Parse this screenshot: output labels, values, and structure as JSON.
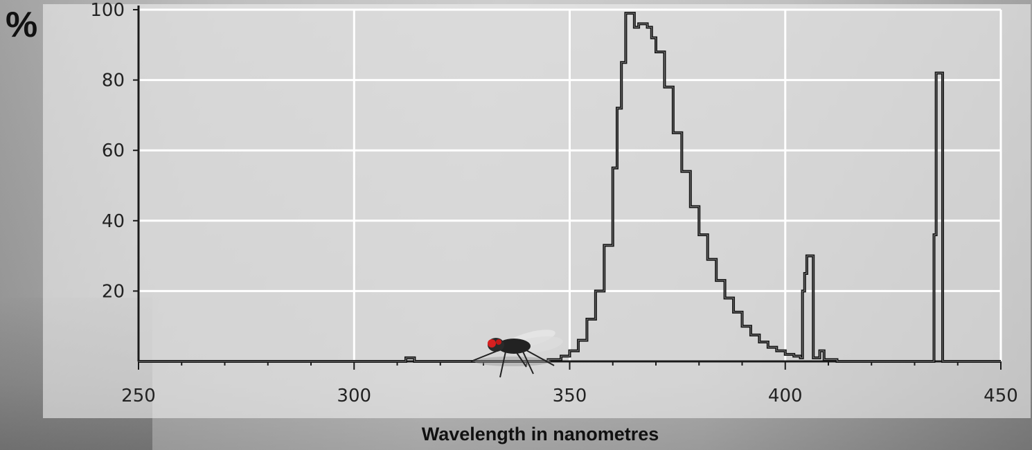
{
  "y_unit_label": "%",
  "x_axis_title": "Wavelength in nanometres",
  "colors": {
    "curve": "#111111",
    "grid": "#ffffff",
    "axis": "#1a1a1a",
    "plot_background": "#d6d6d6"
  },
  "icons": [
    "fly-icon"
  ],
  "chart_data": {
    "type": "line",
    "title": "",
    "xlabel": "Wavelength in nanometres",
    "ylabel": "%",
    "xlim": [
      250,
      450
    ],
    "ylim": [
      0,
      100
    ],
    "x_ticks": [
      250,
      300,
      350,
      400,
      450
    ],
    "y_ticks": [
      20,
      40,
      60,
      80,
      100
    ],
    "grid": true,
    "series": [
      {
        "values_xy": [
          [
            250,
            0
          ],
          [
            310,
            0
          ],
          [
            312,
            1
          ],
          [
            314,
            0
          ],
          [
            340,
            0
          ],
          [
            345,
            0.5
          ],
          [
            348,
            1.5
          ],
          [
            350,
            3
          ],
          [
            352,
            6
          ],
          [
            354,
            12
          ],
          [
            356,
            20
          ],
          [
            358,
            33
          ],
          [
            360,
            55
          ],
          [
            361,
            72
          ],
          [
            362,
            85
          ],
          [
            363,
            99
          ],
          [
            364,
            99
          ],
          [
            365,
            95
          ],
          [
            366,
            96
          ],
          [
            367,
            96
          ],
          [
            368,
            95
          ],
          [
            369,
            92
          ],
          [
            370,
            88
          ],
          [
            372,
            78
          ],
          [
            374,
            65
          ],
          [
            376,
            54
          ],
          [
            378,
            44
          ],
          [
            380,
            36
          ],
          [
            382,
            29
          ],
          [
            384,
            23
          ],
          [
            386,
            18
          ],
          [
            388,
            14
          ],
          [
            390,
            10
          ],
          [
            392,
            7.5
          ],
          [
            394,
            5.5
          ],
          [
            396,
            4
          ],
          [
            398,
            3
          ],
          [
            400,
            2
          ],
          [
            402,
            1.5
          ],
          [
            403.5,
            1
          ],
          [
            404,
            20
          ],
          [
            404.5,
            25
          ],
          [
            405,
            30
          ],
          [
            406,
            30
          ],
          [
            406.5,
            1
          ],
          [
            408,
            3
          ],
          [
            409,
            0.5
          ],
          [
            412,
            0
          ],
          [
            434,
            0
          ],
          [
            434.5,
            36
          ],
          [
            435,
            82
          ],
          [
            436,
            82
          ],
          [
            436.5,
            0
          ],
          [
            450,
            0
          ]
        ]
      }
    ]
  }
}
